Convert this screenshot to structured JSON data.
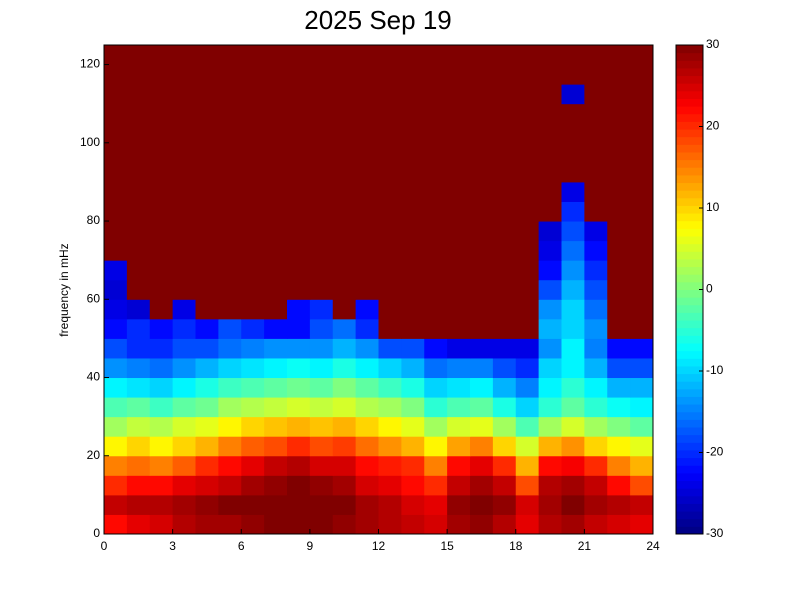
{
  "chart_data": {
    "type": "heatmap",
    "title": "2025 Sep 19",
    "y_label": "frequency in mHz",
    "colormap": "jet",
    "xbins": [
      0,
      1,
      2,
      3,
      4,
      5,
      6,
      7,
      8,
      9,
      10,
      11,
      12,
      13,
      14,
      15,
      16,
      17,
      18,
      19,
      20,
      21,
      22,
      23,
      24
    ],
    "ybins": [
      0,
      5,
      10,
      15,
      20,
      25,
      30,
      35,
      40,
      45,
      50,
      55,
      60,
      65,
      70,
      75,
      80,
      85,
      90,
      95,
      100,
      105,
      110,
      115,
      120,
      125
    ],
    "xlim": [
      0,
      24
    ],
    "xticks": [
      0,
      3,
      6,
      9,
      12,
      15,
      18,
      21,
      24
    ],
    "ylim": [
      0,
      125
    ],
    "yticks": [
      0,
      20,
      40,
      60,
      80,
      100,
      120
    ],
    "clim": [
      -30,
      30
    ],
    "cticks": [
      -30,
      -20,
      -10,
      0,
      10,
      20,
      30
    ],
    "z": [
      [
        22,
        24,
        25,
        27,
        28,
        28,
        29,
        30,
        30,
        30,
        29,
        28,
        27,
        26,
        25,
        28,
        29,
        27,
        24,
        27,
        28,
        26,
        25,
        24
      ],
      [
        26,
        27,
        27,
        28,
        29,
        30,
        30,
        30,
        30,
        30,
        30,
        28,
        27,
        25,
        24,
        29,
        30,
        29,
        25,
        28,
        30,
        28,
        27,
        26
      ],
      [
        20,
        22,
        22,
        24,
        25,
        26,
        28,
        29,
        30,
        29,
        28,
        25,
        24,
        22,
        20,
        26,
        28,
        26,
        18,
        27,
        28,
        26,
        22,
        18
      ],
      [
        15,
        16,
        15,
        17,
        20,
        22,
        24,
        26,
        27,
        25,
        25,
        22,
        21,
        20,
        15,
        22,
        24,
        20,
        12,
        22,
        23,
        20,
        15,
        12
      ],
      [
        8,
        10,
        8,
        10,
        12,
        15,
        17,
        18,
        20,
        18,
        19,
        16,
        14,
        12,
        8,
        13,
        15,
        10,
        5,
        12,
        14,
        10,
        8,
        6
      ],
      [
        2,
        4,
        3,
        5,
        6,
        8,
        10,
        11,
        12,
        11,
        12,
        10,
        8,
        6,
        2,
        5,
        6,
        2,
        -3,
        2,
        5,
        2,
        0,
        -2
      ],
      [
        -3,
        -2,
        -4,
        -2,
        -1,
        2,
        3,
        4,
        5,
        4,
        5,
        3,
        2,
        0,
        -5,
        -3,
        -2,
        -6,
        -10,
        -5,
        -2,
        -5,
        -7,
        -8
      ],
      [
        -8,
        -9,
        -10,
        -8,
        -6,
        -4,
        -3,
        -2,
        -1,
        -2,
        0,
        -2,
        -4,
        -6,
        -10,
        -9,
        -8,
        -12,
        -15,
        -8,
        -5,
        -8,
        -12,
        -12
      ],
      [
        -14,
        -15,
        -16,
        -14,
        -12,
        -10,
        -9,
        -8,
        -7,
        -8,
        -6,
        -8,
        -10,
        -12,
        -16,
        -15,
        -15,
        -18,
        -20,
        -10,
        -8,
        -12,
        -18,
        -18
      ],
      [
        -18,
        -20,
        -20,
        -18,
        -18,
        -16,
        -15,
        -14,
        -14,
        -14,
        -12,
        -14,
        -18,
        -18,
        -22,
        -24,
        -24,
        -24,
        -24,
        -14,
        -8,
        -15,
        -22,
        -22
      ],
      [
        -22,
        -20,
        -22,
        -20,
        -22,
        -18,
        -20,
        -22,
        -22,
        -18,
        -16,
        -20,
        30,
        30,
        30,
        30,
        30,
        30,
        30,
        -12,
        -10,
        -14,
        30,
        30
      ],
      [
        -24,
        -25,
        30,
        -24,
        30,
        30,
        30,
        30,
        -22,
        -20,
        30,
        -22,
        30,
        30,
        30,
        30,
        30,
        30,
        30,
        -14,
        -10,
        -16,
        30,
        30
      ],
      [
        -25,
        30,
        30,
        30,
        30,
        30,
        30,
        30,
        30,
        30,
        30,
        30,
        30,
        30,
        30,
        30,
        30,
        30,
        30,
        -18,
        -12,
        -18,
        30,
        30
      ],
      [
        -24,
        30,
        30,
        30,
        30,
        30,
        30,
        30,
        30,
        30,
        30,
        30,
        30,
        30,
        30,
        30,
        30,
        30,
        30,
        -22,
        -14,
        -20,
        30,
        30
      ],
      [
        30,
        30,
        30,
        30,
        30,
        30,
        30,
        30,
        30,
        30,
        30,
        30,
        30,
        30,
        30,
        30,
        30,
        30,
        30,
        -24,
        -16,
        -22,
        30,
        30
      ],
      [
        30,
        30,
        30,
        30,
        30,
        30,
        30,
        30,
        30,
        30,
        30,
        30,
        30,
        30,
        30,
        30,
        30,
        30,
        30,
        -25,
        -18,
        -24,
        30,
        30
      ],
      [
        30,
        30,
        30,
        30,
        30,
        30,
        30,
        30,
        30,
        30,
        30,
        30,
        30,
        30,
        30,
        30,
        30,
        30,
        30,
        30,
        -20,
        30,
        30,
        30
      ],
      [
        30,
        30,
        30,
        30,
        30,
        30,
        30,
        30,
        30,
        30,
        30,
        30,
        30,
        30,
        30,
        30,
        30,
        30,
        30,
        30,
        -24,
        30,
        30,
        30
      ],
      [
        30,
        30,
        30,
        30,
        30,
        30,
        30,
        30,
        30,
        30,
        30,
        30,
        30,
        30,
        30,
        30,
        30,
        30,
        30,
        30,
        30,
        30,
        30,
        30
      ],
      [
        30,
        30,
        30,
        30,
        30,
        30,
        30,
        30,
        30,
        30,
        30,
        30,
        30,
        30,
        30,
        30,
        30,
        30,
        30,
        30,
        30,
        30,
        30,
        30
      ],
      [
        30,
        30,
        30,
        30,
        30,
        30,
        30,
        30,
        30,
        30,
        30,
        30,
        30,
        30,
        30,
        30,
        30,
        30,
        30,
        30,
        30,
        30,
        30,
        30
      ],
      [
        30,
        30,
        30,
        30,
        30,
        30,
        30,
        30,
        30,
        30,
        30,
        30,
        30,
        30,
        30,
        30,
        30,
        30,
        30,
        30,
        30,
        30,
        30,
        30
      ],
      [
        30,
        30,
        30,
        30,
        30,
        30,
        30,
        30,
        30,
        30,
        30,
        30,
        30,
        30,
        30,
        30,
        30,
        30,
        30,
        30,
        -25,
        30,
        30,
        30
      ],
      [
        30,
        30,
        30,
        30,
        30,
        30,
        30,
        30,
        30,
        30,
        30,
        30,
        30,
        30,
        30,
        30,
        30,
        30,
        30,
        30,
        30,
        30,
        30,
        30
      ],
      [
        30,
        30,
        30,
        30,
        30,
        30,
        30,
        30,
        30,
        30,
        30,
        30,
        30,
        30,
        30,
        30,
        30,
        30,
        30,
        30,
        30,
        30,
        30,
        30
      ]
    ]
  }
}
